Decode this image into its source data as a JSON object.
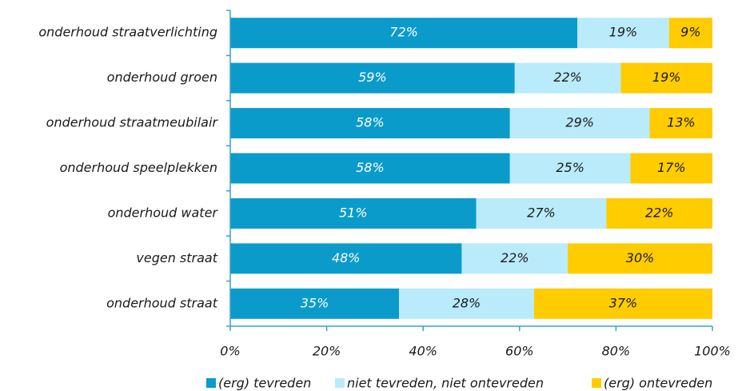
{
  "chart_data": {
    "type": "stacked_barh",
    "categories": [
      "onderhoud straatverlichting",
      "onderhoud groen",
      "onderhoud straatmeubilair",
      "onderhoud speelplekken",
      "onderhoud water",
      "vegen straat",
      "onderhoud straat"
    ],
    "series": [
      {
        "name": "(erg) tevreden",
        "color": "#0b9bcb",
        "label_color": "#ffffff",
        "values": [
          72,
          59,
          58,
          58,
          51,
          48,
          35
        ],
        "value_labels": [
          "72%",
          "59%",
          "58%",
          "58%",
          "51%",
          "48%",
          "35%"
        ]
      },
      {
        "name": "niet tevreden, niet ontevreden",
        "color": "#b9ebfa",
        "label_color": "#1a1a1a",
        "values": [
          19,
          22,
          29,
          25,
          27,
          22,
          28
        ],
        "value_labels": [
          "19%",
          "22%",
          "29%",
          "25%",
          "27%",
          "22%",
          "28%"
        ]
      },
      {
        "name": "(erg) ontevreden",
        "color": "#ffcc00",
        "label_color": "#1a1a1a",
        "values": [
          9,
          19,
          13,
          17,
          22,
          30,
          37
        ],
        "value_labels": [
          "9%",
          "19%",
          "13%",
          "17%",
          "22%",
          "30%",
          "37%"
        ]
      }
    ],
    "xlim": [
      0,
      100
    ],
    "xticks": [
      {
        "value": 0,
        "label": "0%"
      },
      {
        "value": 20,
        "label": "20%"
      },
      {
        "value": 40,
        "label": "40%"
      },
      {
        "value": 60,
        "label": "60%"
      },
      {
        "value": 80,
        "label": "80%"
      },
      {
        "value": 100,
        "label": "100%"
      }
    ],
    "grid": false,
    "legend": "bottom"
  }
}
